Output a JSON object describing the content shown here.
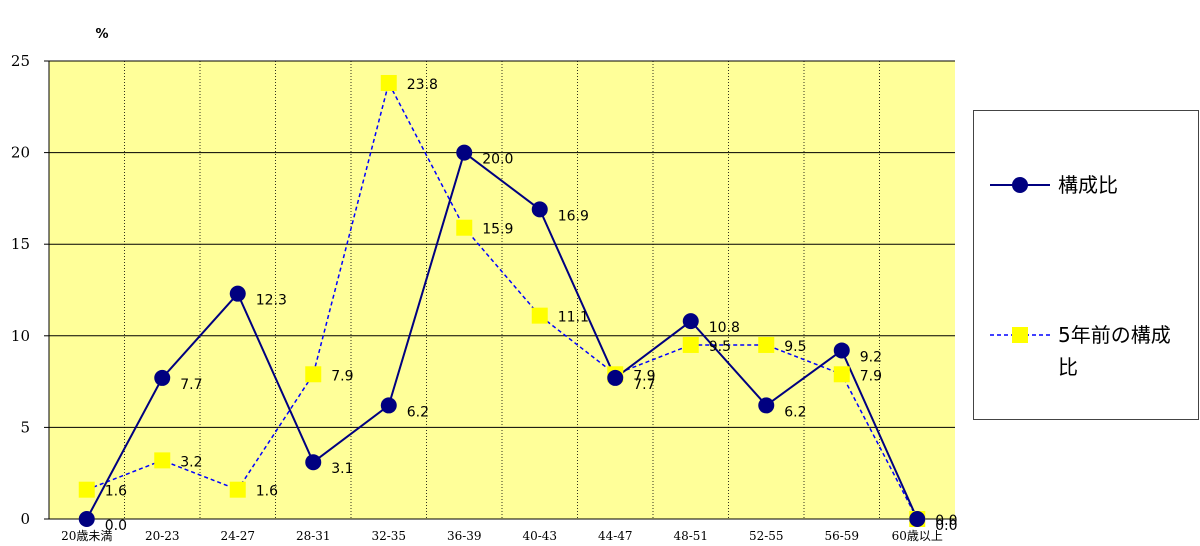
{
  "chart_data": {
    "type": "line",
    "unit_label": "%",
    "categories": [
      "20歳未満",
      "20-23",
      "24-27",
      "28-31",
      "32-35",
      "36-39",
      "40-43",
      "44-47",
      "48-51",
      "52-55",
      "56-59",
      "60歳以上"
    ],
    "ylim": [
      0,
      25
    ],
    "yticks": [
      0,
      5,
      10,
      15,
      20,
      25
    ],
    "grid": "on",
    "legend_position": "right",
    "plot_background": "#FFFF99",
    "series": [
      {
        "name": "構成比",
        "values": [
          0.0,
          7.7,
          12.3,
          3.1,
          6.2,
          20.0,
          16.9,
          7.7,
          10.8,
          6.2,
          9.2,
          0.0
        ],
        "labels": [
          "0.0",
          "7.7",
          "12.3",
          "3.1",
          "6.2",
          "20.0",
          "16.9",
          "7.7",
          "10.8",
          "6.2",
          "9.2",
          "0.0"
        ],
        "color": "#000080",
        "line_style": "solid",
        "marker": "circle"
      },
      {
        "name": "5年前の構成比",
        "values": [
          1.6,
          3.2,
          1.6,
          7.9,
          23.8,
          15.9,
          11.1,
          7.9,
          9.5,
          9.5,
          7.9,
          0.0
        ],
        "labels": [
          "1.6",
          "3.2",
          "1.6",
          "7.9",
          "23.8",
          "15.9",
          "11.1",
          "7.9",
          "9.5",
          "9.5",
          "7.9",
          "0.0"
        ],
        "color": "#0000FF",
        "marker_color": "#FFFF00",
        "line_style": "dashed",
        "marker": "square"
      }
    ]
  },
  "legend": {
    "items": [
      {
        "label": "構成比"
      },
      {
        "label": "5年前の構成比"
      }
    ]
  }
}
